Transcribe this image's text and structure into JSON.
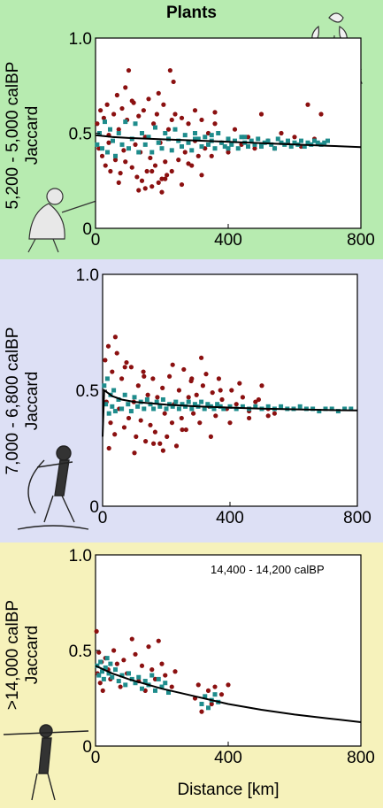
{
  "figure": {
    "title": "Plants",
    "xlabel": "Distance [km]",
    "colors": {
      "panel1_bg": "#b7ebb0",
      "panel2_bg": "#dde0f5",
      "panel3_bg": "#f6f2bb",
      "observed_points": "#8b1010",
      "simulated_points": "#1e8c8c",
      "fit_line": "#000000"
    }
  },
  "panels": [
    {
      "period": "5,200 - 5,000 calBP",
      "ylabel": "Jaccard",
      "annotation": ""
    },
    {
      "period": "7,000 - 6,800 calBP",
      "ylabel": "Jaccard",
      "annotation": ""
    },
    {
      "period": ">14,000 calBP",
      "ylabel": "Jaccard",
      "annotation": "14,400 - 14,200 calBP"
    }
  ],
  "chart_data": [
    {
      "type": "scatter",
      "title": "Plants",
      "xlabel": "",
      "ylabel": "Jaccard",
      "xlim": [
        0,
        800
      ],
      "ylim": [
        0,
        1.0
      ],
      "xticks": [
        "0",
        "400",
        "800"
      ],
      "yticks": [
        "0",
        "0.5",
        "1.0"
      ],
      "grid": false,
      "series": [
        {
          "kind": "observed",
          "color": "#8b1010",
          "x": [
            5,
            10,
            15,
            20,
            25,
            30,
            35,
            40,
            45,
            55,
            60,
            65,
            70,
            75,
            80,
            85,
            90,
            95,
            100,
            110,
            115,
            120,
            125,
            130,
            135,
            140,
            145,
            150,
            155,
            160,
            165,
            170,
            175,
            180,
            185,
            190,
            195,
            200,
            205,
            210,
            215,
            220,
            225,
            230,
            240,
            250,
            260,
            270,
            280,
            290,
            300,
            310,
            320,
            330,
            340,
            350,
            360,
            380,
            400,
            420,
            440,
            460,
            480,
            500,
            520,
            540,
            560,
            580,
            600,
            620,
            640,
            660,
            680,
            90,
            150,
            200,
            235,
            280,
            320,
            360,
            40,
            70,
            110,
            130,
            170,
            190,
            210,
            230,
            260,
            300
          ],
          "y": [
            0.55,
            0.42,
            0.62,
            0.38,
            0.58,
            0.33,
            0.65,
            0.45,
            0.3,
            0.6,
            0.36,
            0.7,
            0.52,
            0.29,
            0.63,
            0.41,
            0.35,
            0.57,
            0.83,
            0.32,
            0.66,
            0.44,
            0.27,
            0.59,
            0.4,
            0.25,
            0.62,
            0.48,
            0.3,
            0.68,
            0.37,
            0.22,
            0.55,
            0.33,
            0.6,
            0.24,
            0.45,
            0.19,
            0.65,
            0.35,
            0.28,
            0.52,
            0.83,
            0.3,
            0.6,
            0.36,
            0.58,
            0.4,
            0.55,
            0.33,
            0.62,
            0.38,
            0.57,
            0.42,
            0.5,
            0.38,
            0.55,
            0.45,
            0.4,
            0.52,
            0.44,
            0.48,
            0.42,
            0.6,
            0.46,
            0.42,
            0.5,
            0.45,
            0.48,
            0.43,
            0.65,
            0.47,
            0.6,
            0.74,
            0.21,
            0.26,
            0.77,
            0.34,
            0.28,
            0.61,
            0.49,
            0.24,
            0.67,
            0.2,
            0.3,
            0.71,
            0.26,
            0.57,
            0.23,
            0.46
          ]
        },
        {
          "kind": "simulated",
          "color": "#1e8c8c",
          "x": [
            5,
            12,
            20,
            28,
            36,
            44,
            52,
            60,
            70,
            80,
            90,
            100,
            110,
            120,
            130,
            140,
            150,
            160,
            170,
            180,
            190,
            200,
            210,
            220,
            230,
            240,
            250,
            260,
            270,
            280,
            290,
            300,
            310,
            320,
            330,
            340,
            350,
            360,
            370,
            380,
            390,
            400,
            410,
            420,
            430,
            440,
            450,
            460,
            470,
            480,
            490,
            500,
            510,
            520,
            530,
            540,
            550,
            560,
            570,
            580,
            590,
            600,
            610,
            620,
            630,
            640,
            650,
            660,
            670,
            680,
            690,
            700,
            300,
            350,
            400,
            450,
            500
          ],
          "y": [
            0.44,
            0.5,
            0.42,
            0.56,
            0.4,
            0.52,
            0.46,
            0.38,
            0.5,
            0.44,
            0.56,
            0.42,
            0.47,
            0.55,
            0.4,
            0.5,
            0.44,
            0.48,
            0.4,
            0.53,
            0.45,
            0.42,
            0.5,
            0.47,
            0.41,
            0.52,
            0.46,
            0.43,
            0.49,
            0.45,
            0.41,
            0.5,
            0.47,
            0.43,
            0.48,
            0.44,
            0.46,
            0.42,
            0.5,
            0.45,
            0.43,
            0.47,
            0.44,
            0.46,
            0.42,
            0.48,
            0.45,
            0.43,
            0.46,
            0.44,
            0.47,
            0.43,
            0.45,
            0.46,
            0.44,
            0.42,
            0.47,
            0.45,
            0.44,
            0.46,
            0.43,
            0.45,
            0.44,
            0.46,
            0.43,
            0.45,
            0.44,
            0.46,
            0.45,
            0.44,
            0.45,
            0.46,
            0.47,
            0.49,
            0.42,
            0.48,
            0.44
          ]
        }
      ],
      "fit": {
        "x": [
          0,
          50,
          100,
          200,
          300,
          400,
          500,
          600,
          700,
          800
        ],
        "y": [
          0.49,
          0.48,
          0.475,
          0.468,
          0.462,
          0.455,
          0.448,
          0.441,
          0.434,
          0.427
        ]
      }
    },
    {
      "type": "scatter",
      "title": "",
      "xlabel": "",
      "ylabel": "Jaccard",
      "xlim": [
        0,
        800
      ],
      "ylim": [
        0,
        1.0
      ],
      "xticks": [
        "0",
        "400",
        "800"
      ],
      "yticks": [
        "0",
        "0.5",
        "1.0"
      ],
      "grid": false,
      "series": [
        {
          "kind": "observed",
          "color": "#8b1010",
          "x": [
            8,
            12,
            18,
            25,
            30,
            38,
            45,
            52,
            60,
            68,
            75,
            82,
            90,
            98,
            105,
            112,
            120,
            128,
            135,
            142,
            150,
            158,
            165,
            172,
            180,
            188,
            195,
            202,
            210,
            218,
            225,
            232,
            240,
            248,
            255,
            262,
            270,
            278,
            285,
            295,
            305,
            315,
            325,
            335,
            345,
            355,
            365,
            375,
            390,
            405,
            420,
            440,
            460,
            480,
            500,
            520,
            540,
            20,
            40,
            70,
            100,
            130,
            160,
            190,
            220,
            250,
            280,
            310,
            340,
            370,
            400,
            430,
            460,
            490,
            520
          ],
          "y": [
            0.63,
            0.45,
            0.69,
            0.36,
            0.58,
            0.31,
            0.66,
            0.42,
            0.55,
            0.34,
            0.62,
            0.38,
            0.6,
            0.45,
            0.3,
            0.52,
            0.37,
            0.58,
            0.28,
            0.48,
            0.35,
            0.55,
            0.32,
            0.47,
            0.27,
            0.51,
            0.4,
            0.3,
            0.56,
            0.36,
            0.44,
            0.26,
            0.5,
            0.38,
            0.59,
            0.33,
            0.47,
            0.54,
            0.4,
            0.48,
            0.36,
            0.52,
            0.57,
            0.43,
            0.49,
            0.39,
            0.55,
            0.46,
            0.42,
            0.5,
            0.44,
            0.47,
            0.38,
            0.45,
            0.52,
            0.42,
            0.4,
            0.25,
            0.73,
            0.6,
            0.23,
            0.56,
            0.27,
            0.24,
            0.61,
            0.33,
            0.55,
            0.64,
            0.3,
            0.5,
            0.36,
            0.53,
            0.41,
            0.46,
            0.39
          ]
        },
        {
          "kind": "simulated",
          "color": "#1e8c8c",
          "x": [
            5,
            10,
            15,
            20,
            25,
            30,
            35,
            40,
            50,
            60,
            70,
            80,
            90,
            100,
            110,
            120,
            130,
            140,
            150,
            160,
            170,
            180,
            190,
            200,
            210,
            220,
            230,
            240,
            250,
            260,
            270,
            280,
            290,
            300,
            310,
            320,
            330,
            340,
            350,
            360,
            370,
            380,
            400,
            420,
            440,
            460,
            480,
            500,
            520,
            540,
            560,
            580,
            600,
            620,
            640,
            660,
            680,
            700,
            720,
            740,
            760,
            780
          ],
          "y": [
            0.52,
            0.44,
            0.55,
            0.4,
            0.48,
            0.43,
            0.5,
            0.41,
            0.46,
            0.42,
            0.48,
            0.44,
            0.41,
            0.47,
            0.43,
            0.45,
            0.42,
            0.46,
            0.44,
            0.42,
            0.45,
            0.43,
            0.46,
            0.42,
            0.44,
            0.43,
            0.45,
            0.42,
            0.44,
            0.43,
            0.45,
            0.42,
            0.44,
            0.43,
            0.45,
            0.42,
            0.44,
            0.43,
            0.42,
            0.44,
            0.43,
            0.42,
            0.43,
            0.42,
            0.43,
            0.42,
            0.43,
            0.42,
            0.43,
            0.42,
            0.43,
            0.42,
            0.42,
            0.43,
            0.42,
            0.42,
            0.41,
            0.42,
            0.42,
            0.41,
            0.42,
            0.42
          ]
        }
      ],
      "fit": {
        "x": [
          0,
          5,
          15,
          30,
          60,
          100,
          200,
          300,
          400,
          500,
          600,
          700,
          800
        ],
        "y": [
          0.3,
          0.5,
          0.49,
          0.475,
          0.46,
          0.45,
          0.438,
          0.43,
          0.425,
          0.421,
          0.418,
          0.415,
          0.413
        ]
      }
    },
    {
      "type": "scatter",
      "title": "14,400 - 14,200 calBP",
      "xlabel": "Distance [km]",
      "ylabel": "Jaccard",
      "xlim": [
        0,
        800
      ],
      "ylim": [
        0,
        1.0
      ],
      "xticks": [
        "0",
        "400",
        "800"
      ],
      "yticks": [
        "0",
        "0.5",
        "1.0"
      ],
      "grid": false,
      "series": [
        {
          "kind": "observed",
          "color": "#8b1010",
          "x": [
            3,
            6,
            10,
            14,
            18,
            22,
            30,
            38,
            45,
            55,
            65,
            75,
            85,
            95,
            110,
            120,
            130,
            140,
            150,
            160,
            170,
            180,
            190,
            200,
            210,
            230,
            240,
            300,
            310,
            320,
            340,
            350,
            360,
            380,
            400
          ],
          "y": [
            0.6,
            0.38,
            0.49,
            0.33,
            0.44,
            0.29,
            0.46,
            0.4,
            0.35,
            0.5,
            0.43,
            0.31,
            0.45,
            0.38,
            0.56,
            0.48,
            0.34,
            0.42,
            0.29,
            0.52,
            0.4,
            0.35,
            0.55,
            0.43,
            0.37,
            0.31,
            0.39,
            0.25,
            0.32,
            0.18,
            0.29,
            0.22,
            0.31,
            0.27,
            0.32
          ]
        },
        {
          "kind": "simulated",
          "color": "#1e8c8c",
          "x": [
            5,
            10,
            15,
            20,
            25,
            30,
            35,
            40,
            45,
            50,
            60,
            70,
            80,
            90,
            100,
            110,
            120,
            130,
            140,
            150,
            160,
            170,
            180,
            190,
            200,
            210,
            220,
            320,
            330,
            340,
            350,
            360,
            370
          ],
          "y": [
            0.42,
            0.37,
            0.44,
            0.39,
            0.35,
            0.41,
            0.46,
            0.38,
            0.43,
            0.36,
            0.4,
            0.34,
            0.37,
            0.32,
            0.38,
            0.35,
            0.33,
            0.36,
            0.3,
            0.34,
            0.32,
            0.37,
            0.29,
            0.35,
            0.31,
            0.33,
            0.28,
            0.22,
            0.26,
            0.2,
            0.24,
            0.27,
            0.23
          ]
        }
      ],
      "fit": {
        "x": [
          0,
          50,
          100,
          200,
          300,
          400,
          500,
          600,
          700,
          800
        ],
        "y": [
          0.42,
          0.38,
          0.35,
          0.3,
          0.26,
          0.22,
          0.19,
          0.165,
          0.145,
          0.125
        ]
      }
    }
  ]
}
